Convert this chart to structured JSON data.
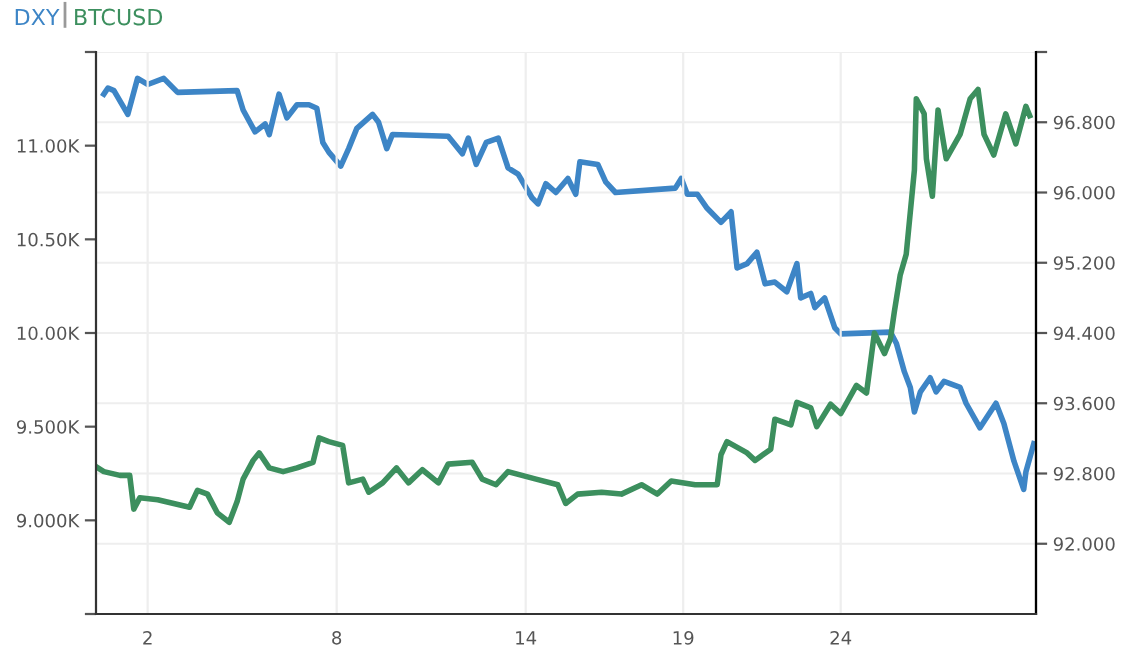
{
  "chart_data": {
    "type": "line",
    "xlim": [
      0.36,
      30.2
    ],
    "xticks": [
      2,
      8,
      14,
      19,
      24
    ],
    "ylim": [
      8500,
      11500
    ],
    "yticks": [
      {
        "value": 8500,
        "label": null
      },
      {
        "value": 9000,
        "label": "9.000K"
      },
      {
        "value": 9500,
        "label": "9.500K"
      },
      {
        "value": 10000,
        "label": "10.00K"
      },
      {
        "value": 10500,
        "label": "10.50K"
      },
      {
        "value": 11000,
        "label": "11.00K"
      },
      {
        "value": 11500,
        "label": null
      }
    ],
    "y2lim": [
      91.2,
      97.6
    ],
    "y2ticks": [
      {
        "value": 92.0,
        "label": "92.000"
      },
      {
        "value": 92.8,
        "label": "92.800"
      },
      {
        "value": 93.6,
        "label": "93.600"
      },
      {
        "value": 94.4,
        "label": "94.400"
      },
      {
        "value": 95.2,
        "label": "95.200"
      },
      {
        "value": 96.0,
        "label": "96.000"
      },
      {
        "value": 96.8,
        "label": "96.800"
      },
      {
        "value": 97.6,
        "label": null
      }
    ],
    "grid": true,
    "legend": "top left",
    "series": [
      {
        "name": "DXY",
        "color": "#3d85c6",
        "axis": "y2",
        "x": [
          0.61,
          0.74,
          0.93,
          1.37,
          1.68,
          2.0,
          2.51,
          2.95,
          4.84,
          5.03,
          5.41,
          5.73,
          5.86,
          6.17,
          6.42,
          6.74,
          7.12,
          7.37,
          7.56,
          7.75,
          8.13,
          8.38,
          8.64,
          9.14,
          9.33,
          9.59,
          9.77,
          11.54,
          11.99,
          12.18,
          12.43,
          12.75,
          13.13,
          13.44,
          13.76,
          14.2,
          14.39,
          14.64,
          14.96,
          15.34,
          15.59,
          15.72,
          16.29,
          16.54,
          16.85,
          18.75,
          18.94,
          19.13,
          19.45,
          19.76,
          20.2,
          20.52,
          20.71,
          21.03,
          21.34,
          21.6,
          21.91,
          22.29,
          22.61,
          22.73,
          23.05,
          23.18,
          23.49,
          23.81,
          24.0,
          25.58,
          25.77,
          26.02,
          26.21,
          26.34,
          26.53,
          26.84,
          27.03,
          27.28,
          27.79,
          27.98,
          28.42,
          28.93,
          29.18,
          29.5,
          29.81,
          29.88,
          30.13
        ],
        "values": [
          97.12,
          97.19,
          97.16,
          96.89,
          97.3,
          97.23,
          97.3,
          97.14,
          97.16,
          96.94,
          96.69,
          96.78,
          96.66,
          97.12,
          96.85,
          97.0,
          97.0,
          96.96,
          96.57,
          96.46,
          96.3,
          96.5,
          96.73,
          96.89,
          96.8,
          96.5,
          96.66,
          96.64,
          96.44,
          96.62,
          96.32,
          96.57,
          96.62,
          96.28,
          96.21,
          95.94,
          95.87,
          96.1,
          96.0,
          96.16,
          95.98,
          96.35,
          96.32,
          96.12,
          96.0,
          96.05,
          96.16,
          95.98,
          95.98,
          95.82,
          95.66,
          95.78,
          95.14,
          95.19,
          95.32,
          94.96,
          94.98,
          94.87,
          95.19,
          94.8,
          94.85,
          94.69,
          94.8,
          94.46,
          94.39,
          94.41,
          94.28,
          93.96,
          93.78,
          93.5,
          93.73,
          93.89,
          93.73,
          93.85,
          93.78,
          93.6,
          93.32,
          93.6,
          93.37,
          92.94,
          92.62,
          92.82,
          93.14
        ]
      },
      {
        "name": "BTCUSD",
        "color": "#3c8f5e",
        "x": [
          0.42,
          0.61,
          1.12,
          1.43,
          1.56,
          1.75,
          2.32,
          3.33,
          3.58,
          3.9,
          4.21,
          4.59,
          4.84,
          5.03,
          5.35,
          5.54,
          5.86,
          6.3,
          6.74,
          7.25,
          7.44,
          7.75,
          8.19,
          8.38,
          8.83,
          9.02,
          9.46,
          9.9,
          10.28,
          10.72,
          11.23,
          11.54,
          12.3,
          12.62,
          13.06,
          13.44,
          14.33,
          15.02,
          15.27,
          15.65,
          16.41,
          17.04,
          17.68,
          18.18,
          18.62,
          19.38,
          20.08,
          20.2,
          20.39,
          21.03,
          21.28,
          21.78,
          21.91,
          22.42,
          22.61,
          23.05,
          23.24,
          23.68,
          24.0,
          24.5,
          24.82,
          25.07,
          25.39,
          25.58,
          25.7,
          25.89,
          26.08,
          26.34,
          26.4,
          26.65,
          26.72,
          26.91,
          27.09,
          27.35,
          27.79,
          28.11,
          28.36,
          28.55,
          28.86,
          29.24,
          29.56,
          29.88,
          30.0
        ],
        "values": [
          9280,
          9260,
          9240,
          9240,
          9060,
          9120,
          9110,
          9070,
          9160,
          9140,
          9040,
          8990,
          9100,
          9220,
          9320,
          9360,
          9280,
          9260,
          9280,
          9310,
          9440,
          9420,
          9400,
          9200,
          9220,
          9150,
          9200,
          9280,
          9200,
          9270,
          9200,
          9300,
          9310,
          9220,
          9190,
          9260,
          9220,
          9190,
          9090,
          9140,
          9150,
          9140,
          9190,
          9140,
          9210,
          9190,
          9190,
          9350,
          9420,
          9360,
          9320,
          9380,
          9540,
          9510,
          9630,
          9600,
          9500,
          9620,
          9570,
          9720,
          9680,
          10000,
          9890,
          9970,
          10110,
          10310,
          10420,
          10870,
          11250,
          11170,
          10930,
          10730,
          11190,
          10930,
          11060,
          11250,
          11300,
          11060,
          10950,
          11170,
          11010,
          11210,
          11160
        ]
      }
    ]
  }
}
